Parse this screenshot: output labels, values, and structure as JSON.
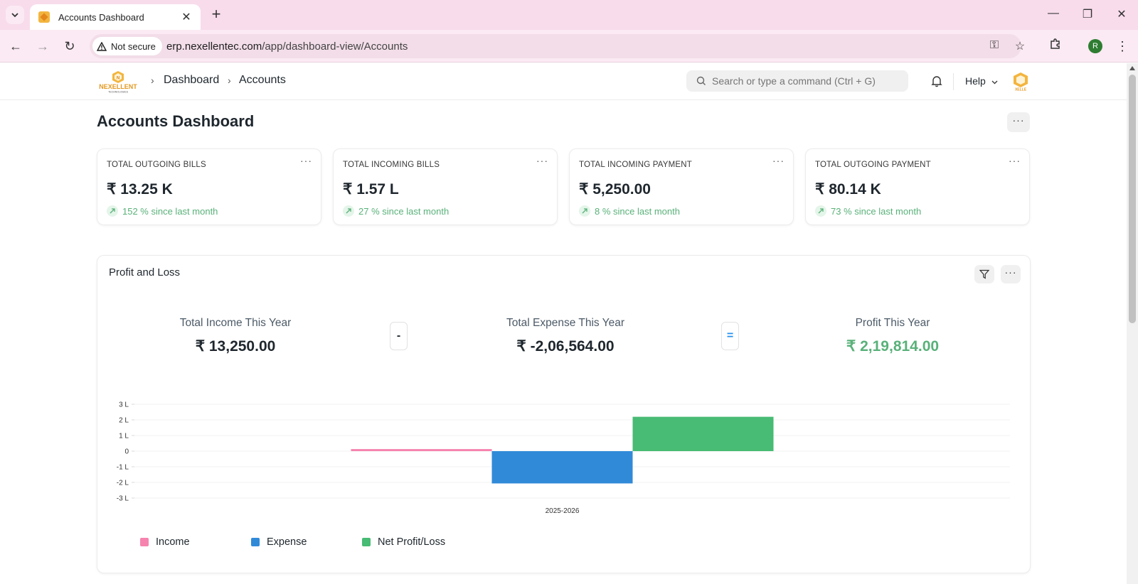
{
  "browser": {
    "tab_title": "Accounts Dashboard",
    "security_label": "Not secure",
    "url_host": "erp.nexellentec.com",
    "url_path": "/app/dashboard-view/Accounts",
    "profile_initial": "R"
  },
  "header": {
    "breadcrumbs": [
      "Dashboard",
      "Accounts"
    ],
    "search_placeholder": "Search or type a command (Ctrl + G)",
    "help_label": "Help"
  },
  "page": {
    "title": "Accounts Dashboard",
    "more_label": "···"
  },
  "cards": [
    {
      "title": "TOTAL OUTGOING BILLS",
      "value": "₹ 13.25 K",
      "trend": "152 % since last month"
    },
    {
      "title": "TOTAL INCOMING BILLS",
      "value": "₹ 1.57 L",
      "trend": "27 % since last month"
    },
    {
      "title": "TOTAL INCOMING PAYMENT",
      "value": "₹ 5,250.00",
      "trend": "8 % since last month"
    },
    {
      "title": "TOTAL OUTGOING PAYMENT",
      "value": "₹ 80.14 K",
      "trend": "73 % since last month"
    }
  ],
  "card_menu_label": "···",
  "profit_loss": {
    "title": "Profit and Loss",
    "income_label": "Total Income This Year",
    "income_value": "₹ 13,250.00",
    "minus_op": "-",
    "expense_label": "Total Expense This Year",
    "expense_value": "₹ -2,06,564.00",
    "equals_op": "=",
    "profit_label": "Profit This Year",
    "profit_value": "₹ 2,19,814.00"
  },
  "colors": {
    "income": "#f683ae",
    "expense": "#318ad8",
    "net": "#48bb74",
    "positive_text": "#59b179"
  },
  "chart_data": {
    "type": "bar",
    "categories": [
      "2025-2026"
    ],
    "series": [
      {
        "name": "Income",
        "values": [
          13250
        ]
      },
      {
        "name": "Expense",
        "values": [
          -206564
        ]
      },
      {
        "name": "Net Profit/Loss",
        "values": [
          219814
        ]
      }
    ],
    "y_ticks": [
      "3 L",
      "2 L",
      "1 L",
      "0",
      "-1 L",
      "-2 L",
      "-3 L"
    ],
    "y_tick_values": [
      300000,
      200000,
      100000,
      0,
      -100000,
      -200000,
      -300000
    ],
    "ylim": [
      -300000,
      300000
    ],
    "legend_position": "bottom-left",
    "grid": true
  }
}
